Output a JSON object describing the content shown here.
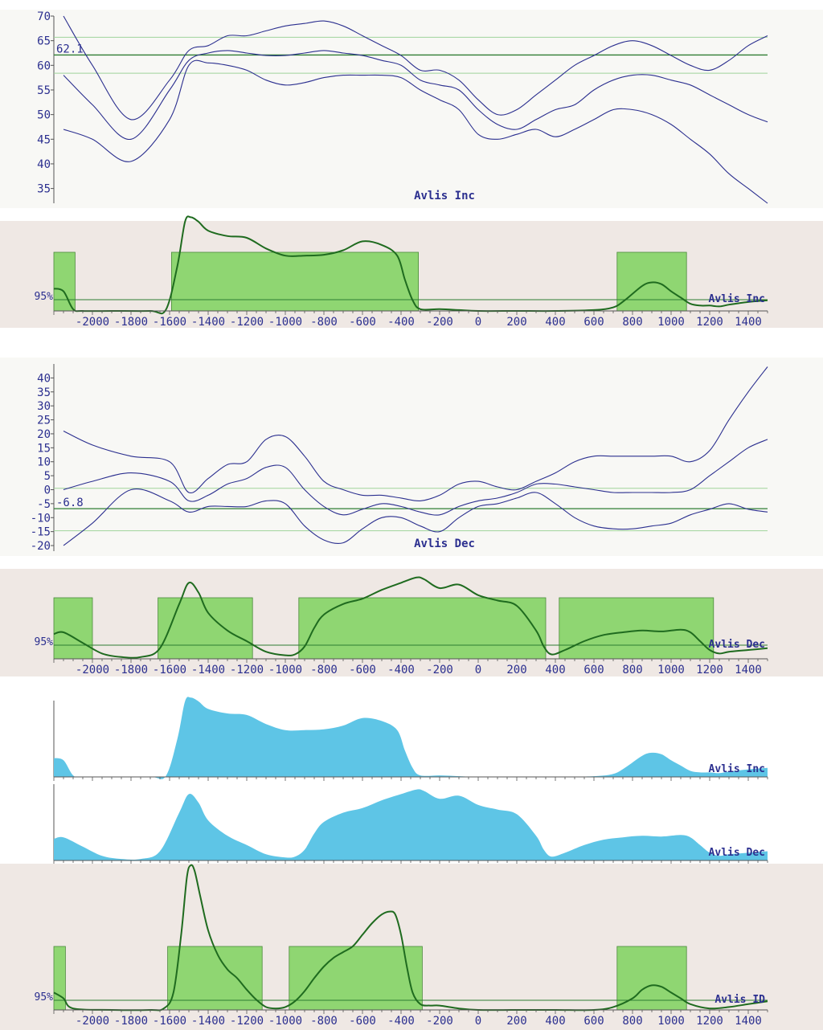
{
  "figure": {
    "colors": {
      "curve": "#2b2f8f",
      "mean_line": "#2e7d32",
      "band_line": "#9fd39a",
      "density_line": "#1f6b1f",
      "range_fill": "#8fd672",
      "range_stroke": "#4a8a3a",
      "dist_bg": "#efe8e4",
      "plot_bg": "#f8f8f5",
      "blue_fill": "#5ec5e6",
      "axis_text": "#2b2f8f"
    }
  },
  "chart_data": [
    {
      "id": "inc_curve",
      "type": "line",
      "title": "Avlis Inc",
      "ylim": [
        32,
        70
      ],
      "yticks": [
        35,
        40,
        45,
        50,
        55,
        60,
        65,
        70
      ],
      "mean_label": "62.1",
      "mean": 62.1,
      "band": [
        58.4,
        65.7
      ],
      "x": [
        -2150,
        -2000,
        -1800,
        -1600,
        -1500,
        -1400,
        -1300,
        -1200,
        -1100,
        -1000,
        -900,
        -800,
        -700,
        -600,
        -500,
        -400,
        -300,
        -200,
        -100,
        0,
        100,
        200,
        300,
        400,
        500,
        600,
        700,
        800,
        900,
        1000,
        1100,
        1200,
        1300,
        1400,
        1500
      ],
      "series": [
        {
          "values": [
            70,
            60,
            49,
            57,
            63,
            64,
            66,
            66,
            67,
            68,
            68.5,
            69,
            68,
            66,
            64,
            62,
            59,
            59,
            57,
            53,
            50,
            51,
            54,
            57,
            60,
            62,
            64,
            65,
            64,
            62,
            60,
            59,
            61,
            64,
            66
          ]
        },
        {
          "values": [
            58,
            52,
            45,
            55,
            61,
            62.5,
            63,
            62.5,
            62,
            62,
            62.5,
            63,
            62.5,
            62,
            61,
            60,
            57,
            56,
            55,
            51,
            48,
            47,
            49,
            51,
            52,
            55,
            57,
            58,
            58,
            57,
            56,
            54,
            52,
            50,
            48.5
          ]
        },
        {
          "values": [
            47,
            45,
            40.5,
            49,
            60,
            60.5,
            60,
            59,
            57,
            56,
            56.5,
            57.5,
            58,
            58,
            58,
            57.5,
            55,
            53,
            51,
            46,
            45,
            46,
            47,
            45.5,
            47,
            49,
            51,
            51,
            50,
            48,
            45,
            42,
            38,
            35,
            32
          ]
        }
      ]
    },
    {
      "id": "inc_dist",
      "type": "area",
      "title": "Avlis Inc",
      "level_label": "95%",
      "xlim": [
        -2200,
        1500
      ],
      "xticks": [
        -2000,
        -1800,
        -1600,
        -1400,
        -1200,
        -1000,
        -800,
        -600,
        -400,
        -200,
        0,
        200,
        400,
        600,
        800,
        1000,
        1200,
        1400
      ],
      "ranges": [
        [
          -2200,
          -2090
        ],
        [
          -1590,
          -310
        ],
        [
          720,
          1080
        ]
      ],
      "density": {
        "x": [
          -2200,
          -2150,
          -2100,
          -2050,
          -1900,
          -1700,
          -1620,
          -1560,
          -1520,
          -1490,
          -1450,
          -1400,
          -1300,
          -1200,
          -1100,
          -1000,
          -900,
          -800,
          -700,
          -600,
          -500,
          -420,
          -380,
          -340,
          -300,
          -200,
          -100,
          0,
          200,
          400,
          600,
          700,
          760,
          850,
          900,
          950,
          1000,
          1050,
          1100,
          1150,
          1200,
          1250,
          1300,
          1400,
          1500
        ],
        "values": [
          0.25,
          0.22,
          0.02,
          0.0,
          0.0,
          0.0,
          0.01,
          0.5,
          1.0,
          1.05,
          1.0,
          0.9,
          0.84,
          0.82,
          0.7,
          0.62,
          0.62,
          0.63,
          0.68,
          0.78,
          0.74,
          0.62,
          0.35,
          0.12,
          0.02,
          0.02,
          0.01,
          0.0,
          0.0,
          0.0,
          0.01,
          0.04,
          0.12,
          0.28,
          0.32,
          0.3,
          0.22,
          0.15,
          0.08,
          0.06,
          0.06,
          0.05,
          0.07,
          0.1,
          0.12
        ]
      }
    },
    {
      "id": "dec_curve",
      "type": "line",
      "title": "Avlis Dec",
      "ylim": [
        -22,
        45
      ],
      "yticks": [
        -20,
        -15,
        -10,
        -5,
        0,
        5,
        10,
        15,
        20,
        25,
        30,
        35,
        40
      ],
      "mean_label": "-6.8",
      "mean": -6.8,
      "band": [
        -14.7,
        0.5
      ],
      "x": [
        -2150,
        -2000,
        -1800,
        -1600,
        -1500,
        -1400,
        -1300,
        -1200,
        -1100,
        -1000,
        -900,
        -800,
        -700,
        -600,
        -500,
        -400,
        -300,
        -200,
        -100,
        0,
        100,
        200,
        300,
        400,
        500,
        600,
        700,
        800,
        900,
        1000,
        1100,
        1200,
        1300,
        1400,
        1500
      ],
      "series": [
        {
          "values": [
            21,
            16,
            12,
            10,
            -1,
            4,
            9,
            10,
            18,
            19,
            12,
            3,
            0,
            -2,
            -2,
            -3,
            -4,
            -2,
            2,
            3,
            1,
            0,
            3,
            6,
            10,
            12,
            12,
            12,
            12,
            12,
            10,
            14,
            25,
            35,
            44
          ]
        },
        {
          "values": [
            0,
            3,
            6,
            3,
            -4,
            -2,
            2,
            4,
            8,
            8,
            0,
            -6,
            -9,
            -7,
            -5,
            -6,
            -8,
            -9,
            -6,
            -4,
            -3,
            -1,
            2,
            2,
            1,
            0,
            -1,
            -1,
            -1,
            -1,
            0,
            5,
            10,
            15,
            18
          ]
        },
        {
          "values": [
            -20,
            -12,
            0,
            -4,
            -8,
            -6,
            -6,
            -6,
            -4,
            -5,
            -13,
            -18,
            -19,
            -14,
            -10,
            -10,
            -13,
            -15,
            -10,
            -6,
            -5,
            -3,
            -1,
            -5,
            -10,
            -13,
            -14,
            -14,
            -13,
            -12,
            -9,
            -7,
            -5,
            -7,
            -8
          ]
        }
      ]
    },
    {
      "id": "dec_dist",
      "type": "area",
      "title": "Avlis Dec",
      "level_label": "95%",
      "xlim": [
        -2200,
        1500
      ],
      "xticks": [
        -2000,
        -1800,
        -1600,
        -1400,
        -1200,
        -1000,
        -800,
        -600,
        -400,
        -200,
        0,
        200,
        400,
        600,
        800,
        1000,
        1200,
        1400
      ],
      "ranges": [
        [
          -2200,
          -2000
        ],
        [
          -1660,
          -1170
        ],
        [
          -930,
          350
        ],
        [
          420,
          1220
        ]
      ],
      "density": {
        "x": [
          -2200,
          -2150,
          -2050,
          -1950,
          -1850,
          -1750,
          -1650,
          -1550,
          -1500,
          -1450,
          -1400,
          -1300,
          -1200,
          -1100,
          -1000,
          -950,
          -900,
          -850,
          -800,
          -700,
          -600,
          -500,
          -400,
          -320,
          -280,
          -200,
          -100,
          0,
          100,
          200,
          300,
          340,
          380,
          450,
          550,
          650,
          750,
          850,
          950,
          1050,
          1100,
          1150,
          1200,
          1250,
          1300,
          1400,
          1500
        ],
        "values": [
          0.28,
          0.3,
          0.18,
          0.06,
          0.02,
          0.02,
          0.12,
          0.62,
          0.86,
          0.75,
          0.52,
          0.32,
          0.2,
          0.08,
          0.04,
          0.05,
          0.14,
          0.35,
          0.5,
          0.62,
          0.68,
          0.78,
          0.86,
          0.92,
          0.9,
          0.8,
          0.84,
          0.72,
          0.66,
          0.6,
          0.32,
          0.14,
          0.05,
          0.1,
          0.2,
          0.27,
          0.3,
          0.32,
          0.31,
          0.33,
          0.3,
          0.2,
          0.1,
          0.06,
          0.08,
          0.1,
          0.12
        ]
      }
    },
    {
      "id": "inc_blue",
      "type": "area",
      "title": "Avlis Inc",
      "xlim": [
        -2200,
        1500
      ],
      "density": {
        "x": [
          -2200,
          -2150,
          -2100,
          -2050,
          -1900,
          -1700,
          -1620,
          -1560,
          -1520,
          -1490,
          -1450,
          -1400,
          -1300,
          -1200,
          -1100,
          -1000,
          -900,
          -800,
          -700,
          -600,
          -500,
          -420,
          -380,
          -340,
          -300,
          -200,
          -100,
          0,
          200,
          400,
          600,
          700,
          760,
          850,
          900,
          950,
          1000,
          1050,
          1100,
          1150,
          1200,
          1250,
          1300,
          1400,
          1500
        ],
        "values": [
          0.25,
          0.22,
          0.02,
          0.0,
          0.0,
          0.0,
          0.01,
          0.5,
          1.0,
          1.05,
          1.0,
          0.9,
          0.84,
          0.82,
          0.7,
          0.62,
          0.62,
          0.63,
          0.68,
          0.78,
          0.74,
          0.62,
          0.35,
          0.12,
          0.02,
          0.02,
          0.01,
          0.0,
          0.0,
          0.0,
          0.01,
          0.04,
          0.12,
          0.28,
          0.32,
          0.3,
          0.22,
          0.15,
          0.08,
          0.06,
          0.06,
          0.05,
          0.07,
          0.1,
          0.12
        ]
      }
    },
    {
      "id": "dec_blue",
      "type": "area",
      "title": "Avlis Dec",
      "xlim": [
        -2200,
        1500
      ],
      "density": {
        "x": [
          -2200,
          -2150,
          -2050,
          -1950,
          -1850,
          -1750,
          -1650,
          -1550,
          -1500,
          -1450,
          -1400,
          -1300,
          -1200,
          -1100,
          -1000,
          -950,
          -900,
          -850,
          -800,
          -700,
          -600,
          -500,
          -400,
          -320,
          -280,
          -200,
          -100,
          0,
          100,
          200,
          300,
          340,
          380,
          450,
          550,
          650,
          750,
          850,
          950,
          1050,
          1100,
          1150,
          1200,
          1250,
          1300,
          1400,
          1500
        ],
        "values": [
          0.28,
          0.3,
          0.18,
          0.06,
          0.02,
          0.02,
          0.12,
          0.62,
          0.86,
          0.75,
          0.52,
          0.32,
          0.2,
          0.08,
          0.04,
          0.05,
          0.14,
          0.35,
          0.5,
          0.62,
          0.68,
          0.78,
          0.86,
          0.92,
          0.9,
          0.8,
          0.84,
          0.72,
          0.66,
          0.6,
          0.32,
          0.14,
          0.05,
          0.1,
          0.2,
          0.27,
          0.3,
          0.32,
          0.31,
          0.33,
          0.3,
          0.2,
          0.1,
          0.06,
          0.08,
          0.1,
          0.12
        ]
      }
    },
    {
      "id": "id_dist",
      "type": "area",
      "title": "Avlis ID",
      "level_label": "95%",
      "xlim": [
        -2200,
        1500
      ],
      "xticks": [
        -2000,
        -1800,
        -1600,
        -1400,
        -1200,
        -1000,
        -800,
        -600,
        -400,
        -200,
        0,
        200,
        400,
        600,
        800,
        1000,
        1200,
        1400
      ],
      "ranges": [
        [
          -2200,
          -2140
        ],
        [
          -1610,
          -1120
        ],
        [
          -980,
          -290
        ],
        [
          720,
          1080
        ]
      ],
      "density": {
        "x": [
          -2200,
          -2150,
          -2100,
          -1900,
          -1700,
          -1630,
          -1580,
          -1540,
          -1510,
          -1490,
          -1470,
          -1440,
          -1400,
          -1350,
          -1300,
          -1250,
          -1200,
          -1150,
          -1100,
          -1050,
          -1000,
          -950,
          -900,
          -850,
          -800,
          -750,
          -700,
          -650,
          -600,
          -550,
          -500,
          -460,
          -430,
          -400,
          -370,
          -340,
          -300,
          -250,
          -200,
          -100,
          0,
          200,
          400,
          600,
          700,
          800,
          850,
          900,
          950,
          1000,
          1050,
          1100,
          1200,
          1300,
          1400,
          1500
        ],
        "values": [
          0.12,
          0.08,
          0.01,
          0.0,
          0.0,
          0.01,
          0.12,
          0.52,
          0.92,
          1.0,
          0.96,
          0.78,
          0.55,
          0.38,
          0.28,
          0.22,
          0.14,
          0.07,
          0.02,
          0.01,
          0.02,
          0.06,
          0.13,
          0.22,
          0.3,
          0.36,
          0.4,
          0.44,
          0.52,
          0.6,
          0.66,
          0.68,
          0.66,
          0.52,
          0.3,
          0.12,
          0.04,
          0.03,
          0.03,
          0.01,
          0.0,
          0.0,
          0.0,
          0.0,
          0.02,
          0.08,
          0.14,
          0.17,
          0.16,
          0.12,
          0.08,
          0.04,
          0.01,
          0.02,
          0.04,
          0.06
        ]
      }
    }
  ]
}
